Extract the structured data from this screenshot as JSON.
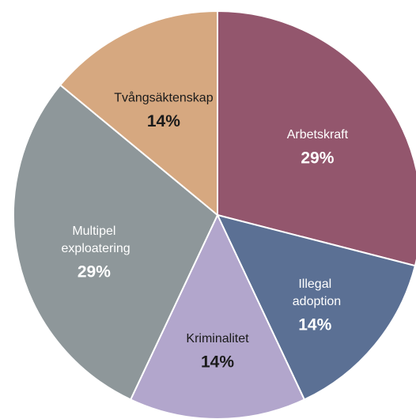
{
  "chart_data": {
    "type": "pie",
    "categories": [
      "Arbetskraft",
      "Illegal adoption",
      "Kriminalitet",
      "Multipel exploatering",
      "Tvångsäktenskap"
    ],
    "values": [
      29,
      14,
      14,
      29,
      14
    ],
    "value_labels": [
      "29%",
      "14%",
      "14%",
      "29%",
      "14%"
    ],
    "colors": [
      "#93566d",
      "#5b7094",
      "#b2a6cc",
      "#8e979a",
      "#d6a880"
    ]
  }
}
